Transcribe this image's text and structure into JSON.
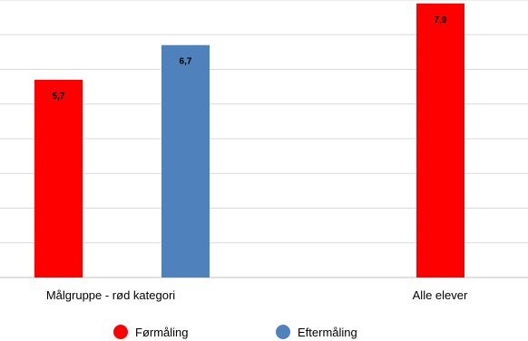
{
  "chart_data": {
    "type": "bar",
    "categories": [
      "Målgruppe - rød kategori",
      "Alle elever"
    ],
    "series": [
      {
        "name": "Førmåling",
        "color": "#ff0000",
        "values": [
          5.7,
          7.9
        ]
      },
      {
        "name": "Eftermåling",
        "color": "#4f81bd",
        "values": [
          6.7,
          null
        ]
      }
    ],
    "data_labels": [
      [
        "5,7",
        "7,9"
      ],
      [
        "6,7",
        ""
      ]
    ],
    "ylim": [
      0,
      8
    ],
    "grid": true,
    "legend_position": "bottom",
    "title": "",
    "xlabel": "",
    "ylabel": ""
  }
}
